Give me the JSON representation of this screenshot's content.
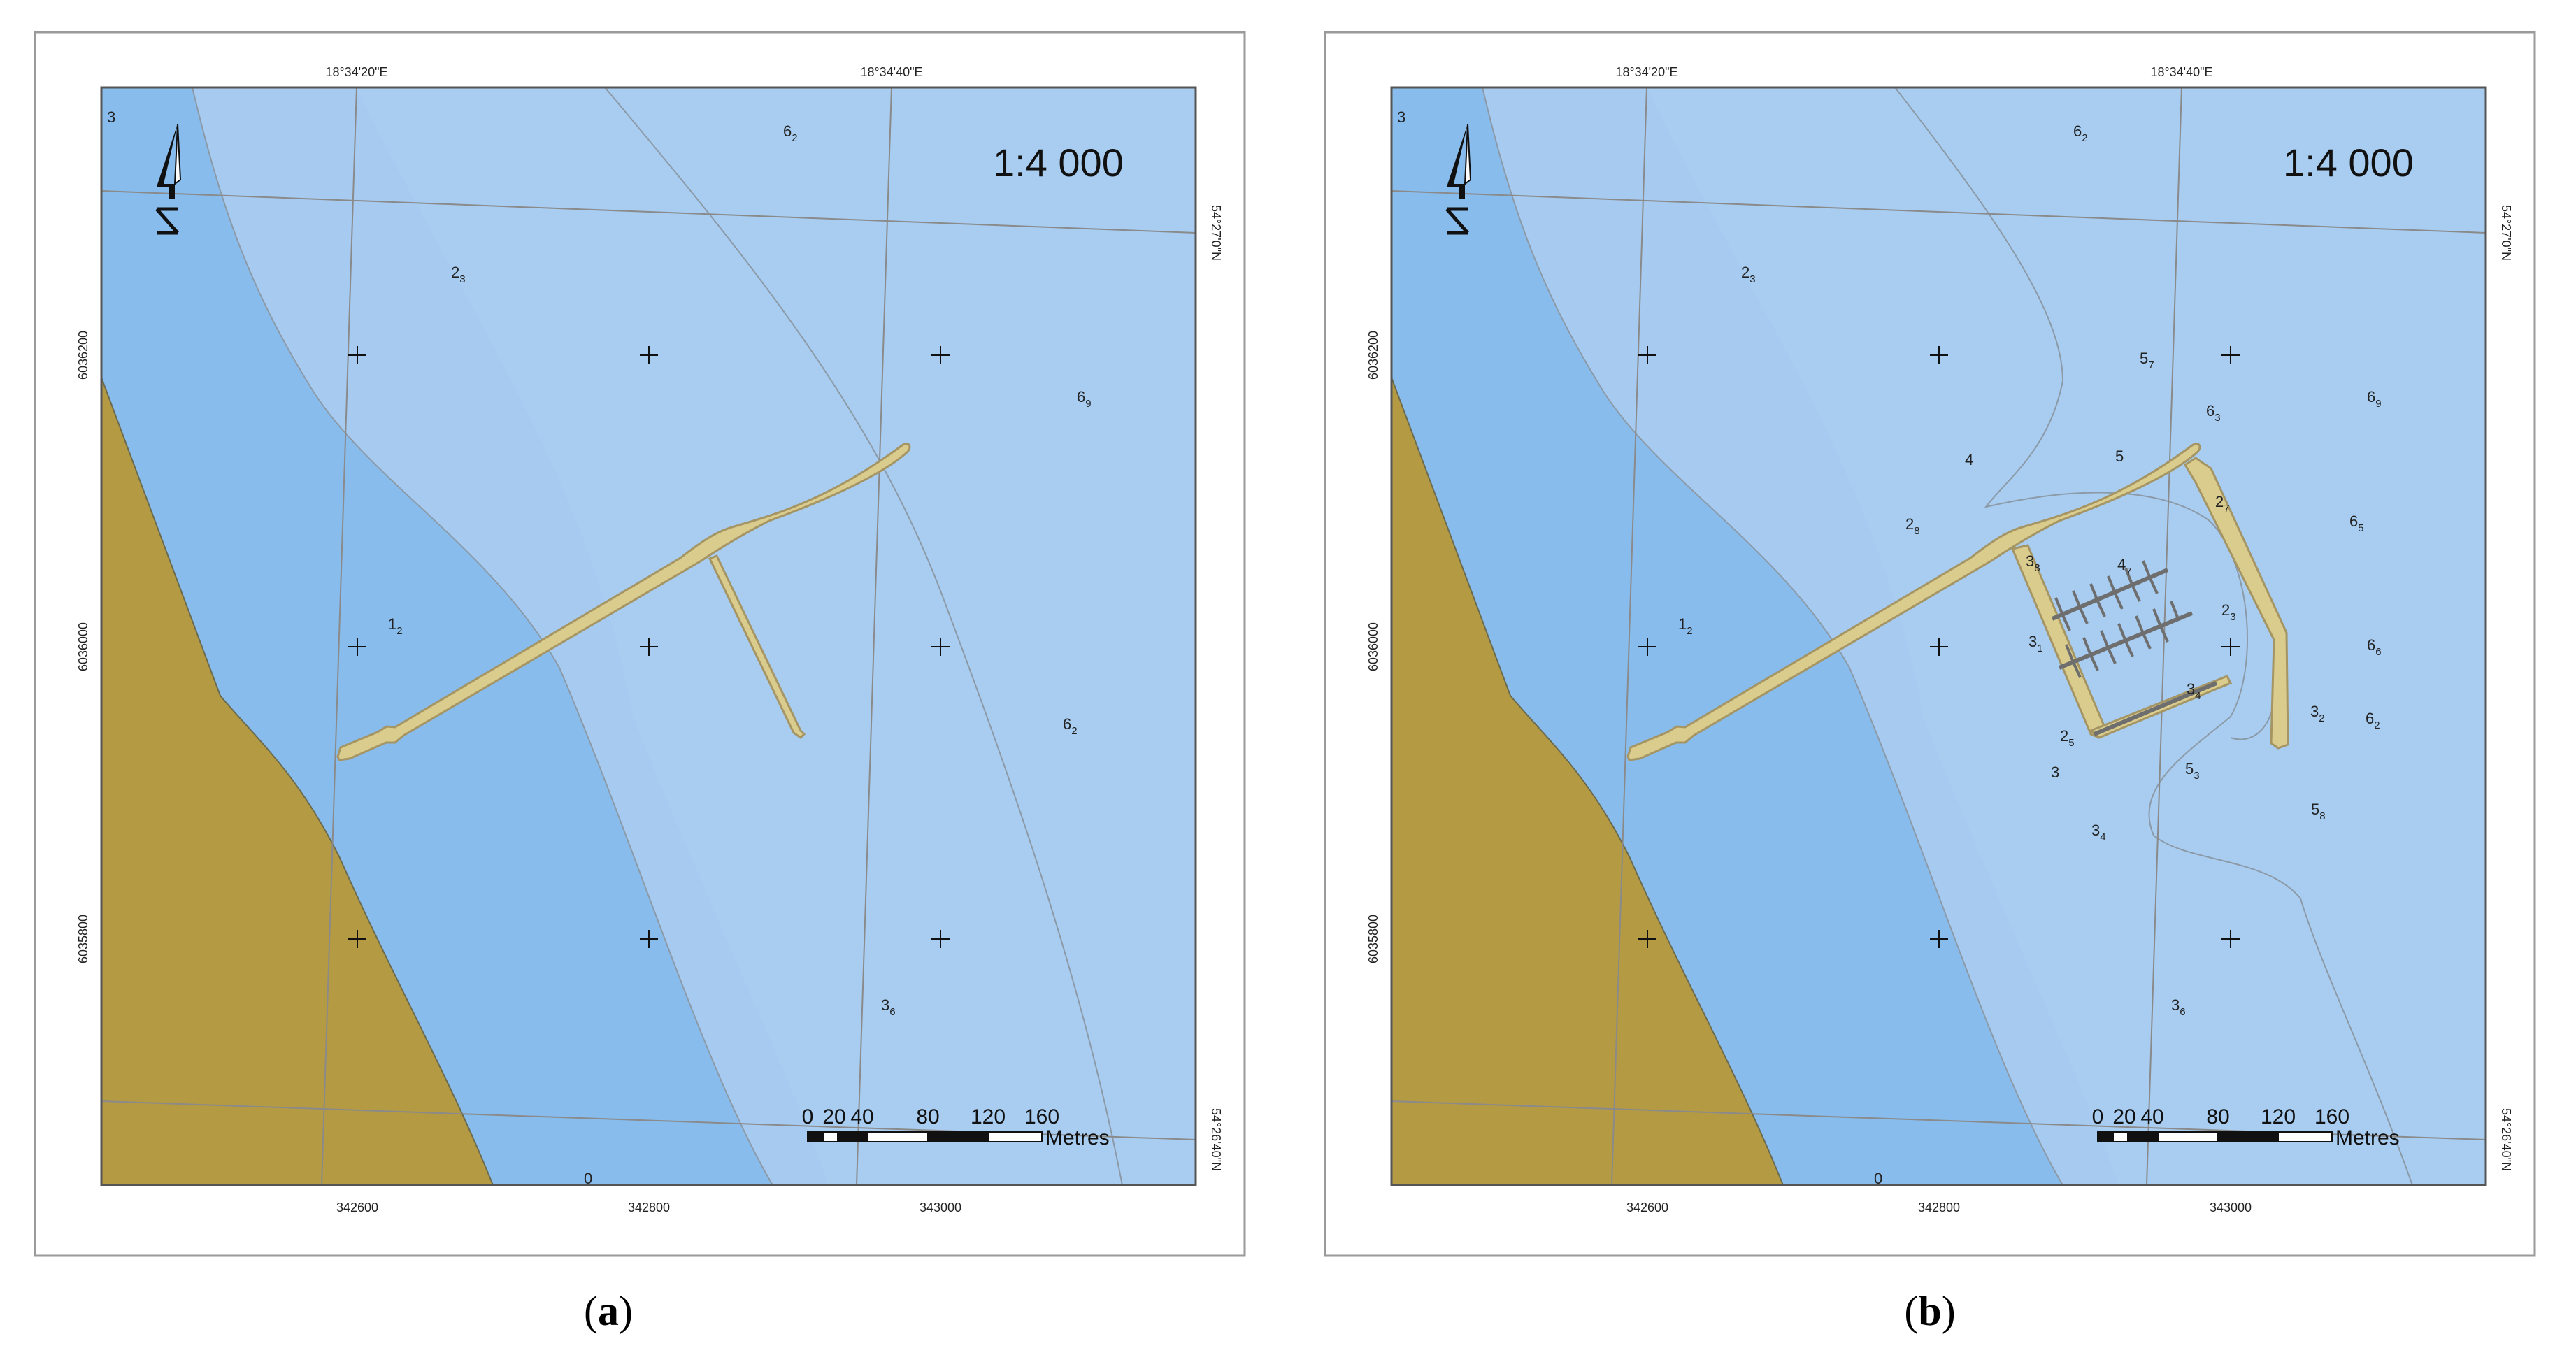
{
  "panels": [
    {
      "id": "a",
      "caption_open": "(",
      "caption_letter": "a",
      "caption_close": ")",
      "scale_ratio": "1:4 000",
      "lon_labels": [
        "18°34'20\"E",
        "18°34'40\"E"
      ],
      "lat_labels": [
        "54°27'0\"N",
        "54°26'40\"N"
      ],
      "easting_labels": [
        "342600",
        "342800",
        "343000"
      ],
      "northing_labels": [
        "6036200",
        "6036000",
        "6035800"
      ],
      "scale_bar": {
        "numbers": [
          "0",
          "20",
          "40",
          "80",
          "120",
          "160"
        ],
        "unit": "Metres"
      },
      "depths": [
        {
          "main": "3",
          "sub": ""
        },
        {
          "main": "6",
          "sub": "2"
        },
        {
          "main": "2",
          "sub": "3"
        },
        {
          "main": "6",
          "sub": "9"
        },
        {
          "main": "1",
          "sub": "2"
        },
        {
          "main": "6",
          "sub": "2"
        },
        {
          "main": "3",
          "sub": "6"
        },
        {
          "main": "0",
          "sub": ""
        }
      ]
    },
    {
      "id": "b",
      "caption_open": "(",
      "caption_letter": "b",
      "caption_close": ")",
      "scale_ratio": "1:4 000",
      "lon_labels": [
        "18°34'20\"E",
        "18°34'40\"E"
      ],
      "lat_labels": [
        "54°27'0\"N",
        "54°26'40\"N"
      ],
      "easting_labels": [
        "342600",
        "342800",
        "343000"
      ],
      "northing_labels": [
        "6036200",
        "6036000",
        "6035800"
      ],
      "scale_bar": {
        "numbers": [
          "0",
          "20",
          "40",
          "80",
          "120",
          "160"
        ],
        "unit": "Metres"
      },
      "depths": [
        {
          "main": "3",
          "sub": ""
        },
        {
          "main": "6",
          "sub": "2"
        },
        {
          "main": "5",
          "sub": "7"
        },
        {
          "main": "6",
          "sub": "3"
        },
        {
          "main": "6",
          "sub": "9"
        },
        {
          "main": "2",
          "sub": "3"
        },
        {
          "main": "4",
          "sub": ""
        },
        {
          "main": "5",
          "sub": ""
        },
        {
          "main": "2",
          "sub": "7"
        },
        {
          "main": "6",
          "sub": "5"
        },
        {
          "main": "2",
          "sub": "8"
        },
        {
          "main": "3",
          "sub": "8"
        },
        {
          "main": "4",
          "sub": "7"
        },
        {
          "main": "1",
          "sub": "2"
        },
        {
          "main": "3",
          "sub": "1"
        },
        {
          "main": "2",
          "sub": "3"
        },
        {
          "main": "6",
          "sub": "6"
        },
        {
          "main": "3",
          "sub": "4"
        },
        {
          "main": "3",
          "sub": "2"
        },
        {
          "main": "6",
          "sub": "2"
        },
        {
          "main": "2",
          "sub": "5"
        },
        {
          "main": "3",
          "sub": ""
        },
        {
          "main": "5",
          "sub": "3"
        },
        {
          "main": "5",
          "sub": "8"
        },
        {
          "main": "3",
          "sub": "4"
        },
        {
          "main": "3",
          "sub": "6"
        },
        {
          "main": "0",
          "sub": ""
        }
      ]
    }
  ],
  "colors": {
    "land": "#b59a44",
    "mid_water": "#88bcec",
    "shallow_water": "#a7cbf0",
    "deep_water": "#a8cdf1",
    "pier": "#d9cc8c",
    "pier_stroke": "#a59564",
    "grid_line": "#8a8a8a",
    "frame": "#555555",
    "contour": "#8c9aa8"
  },
  "icons": [
    "north-arrow-icon"
  ]
}
